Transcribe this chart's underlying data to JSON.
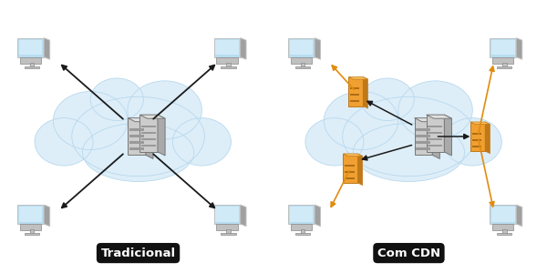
{
  "bg_color": "#ffffff",
  "cloud_color": "#ddeef8",
  "cloud_edge": "#b8d8ee",
  "server_face": "#cccccc",
  "server_side": "#aaaaaa",
  "server_top": "#e0e0e0",
  "server_detail": "#999999",
  "server_orange_face": "#f0a030",
  "server_orange_side": "#c07818",
  "server_orange_top": "#f8c060",
  "server_orange_detail": "#a06010",
  "monitor_screen": "#b8ddf0",
  "monitor_body": "#c0c0c0",
  "monitor_side": "#a0a0a0",
  "arrow_black": "#1a1a1a",
  "arrow_orange": "#e08c10",
  "label_bg": "#111111",
  "label_text": "#ffffff",
  "label_tradicional": "Tradicional",
  "label_cdn": "Com CDN",
  "label_fontsize": 9.5,
  "label_fontweight": "bold"
}
